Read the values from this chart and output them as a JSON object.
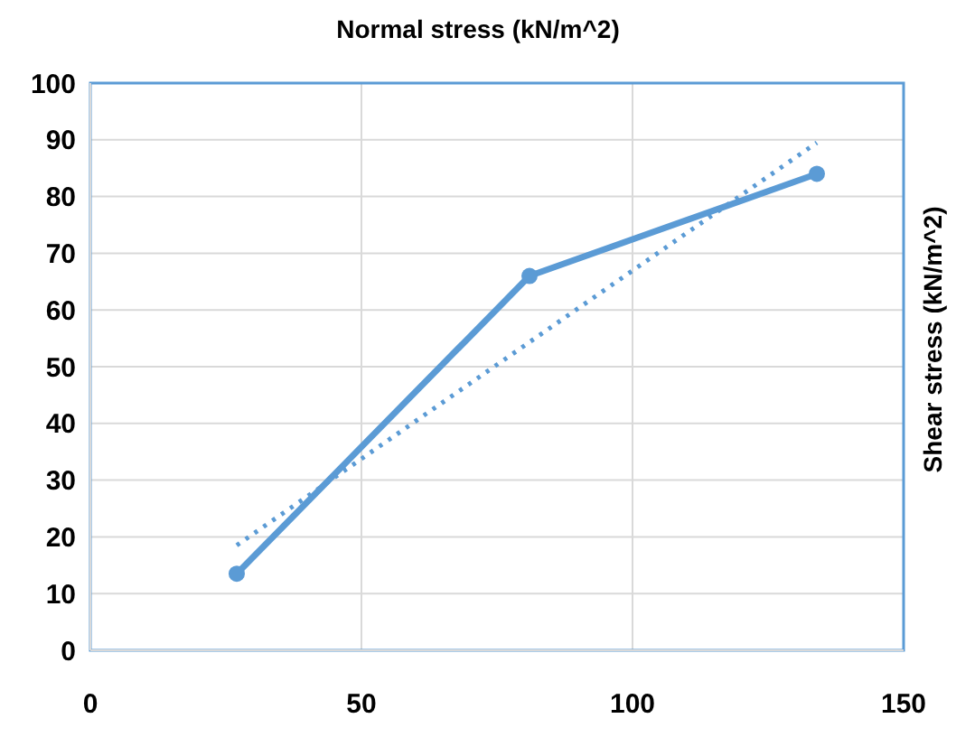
{
  "chart_data": {
    "type": "line",
    "title": "Normal stress (kN/m^2)",
    "ylabel": "Shear stress (kN/m^2)",
    "series": [
      {
        "x": [
          27,
          81,
          134
        ],
        "values": [
          13.5,
          66,
          84
        ],
        "color": "#5b9bd5",
        "marker": "circle",
        "line_style": "solid"
      },
      {
        "x": [
          27,
          134
        ],
        "values": [
          18.5,
          89.5
        ],
        "color": "#5b9bd5",
        "marker": "none",
        "line_style": "dotted"
      }
    ],
    "xlim": [
      0,
      150
    ],
    "xticks": [
      0,
      50,
      100,
      150
    ],
    "ylim": [
      0,
      100
    ],
    "yticks": [
      0,
      10,
      20,
      30,
      40,
      50,
      60,
      70,
      80,
      90,
      100
    ],
    "grid": true,
    "legend": false
  }
}
